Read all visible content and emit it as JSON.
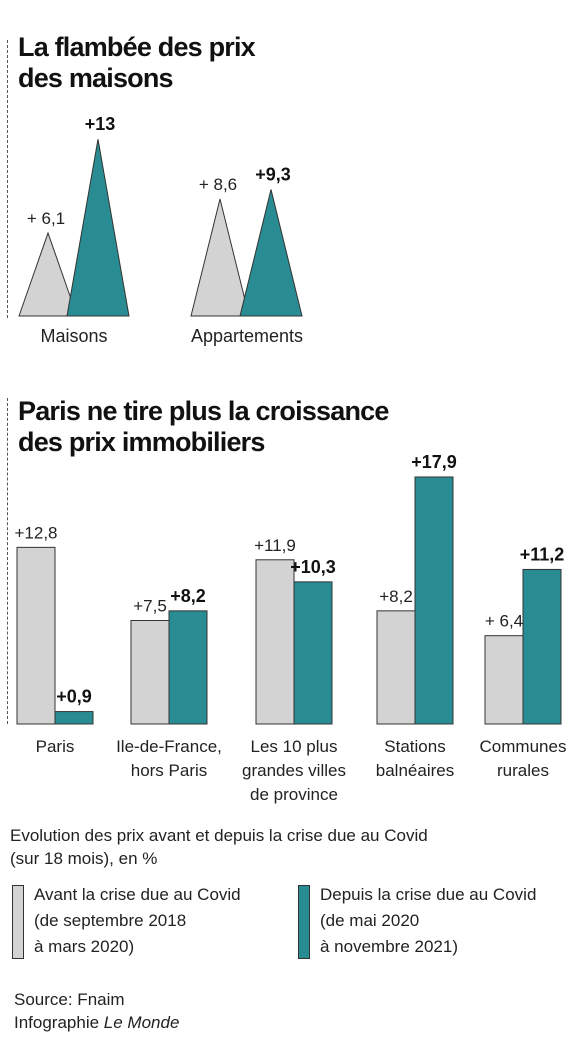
{
  "colors": {
    "before": "#d3d3d3",
    "after": "#2a8c93",
    "outline": "#333333"
  },
  "chart1_title": {
    "line1": "La flambée des prix",
    "line2": "des maisons"
  },
  "chart2_title": {
    "line1": "Paris ne tire plus la croissance",
    "line2": "des prix immobiliers"
  },
  "chart_data": [
    {
      "type": "bar",
      "style": "triangles",
      "categories": [
        "Maisons",
        "Appartements"
      ],
      "series": [
        {
          "values": [
            6.1,
            8.6
          ],
          "labels": [
            "+ 6,1",
            "+ 8,6"
          ]
        },
        {
          "values": [
            13,
            9.3
          ],
          "labels": [
            "+13",
            "+9,3"
          ]
        }
      ]
    },
    {
      "type": "bar",
      "categories": [
        [
          "Paris"
        ],
        [
          "Ile-de-France,",
          "hors Paris"
        ],
        [
          "Les 10 plus",
          "grandes villes",
          "de province"
        ],
        [
          "Stations",
          "balnéaires"
        ],
        [
          "Communes",
          "rurales"
        ]
      ],
      "series": [
        {
          "values": [
            12.8,
            7.5,
            11.9,
            8.2,
            6.4
          ],
          "labels": [
            "+12,8",
            "+7,5",
            "+11,9",
            "+8,2",
            "+ 6,4"
          ]
        },
        {
          "values": [
            0.9,
            8.2,
            10.3,
            17.9,
            11.2
          ],
          "labels": [
            "+0,9",
            "+8,2",
            "+10,3",
            "+17,9",
            "+11,2"
          ]
        }
      ]
    }
  ],
  "caption": {
    "line1": "Evolution des prix avant et depuis la crise due au Covid",
    "line2": "(sur 18 mois), en %"
  },
  "legend": {
    "before": [
      "Avant la crise due au Covid",
      "(de septembre 2018",
      "à mars 2020)"
    ],
    "after": [
      "Depuis la crise due au Covid",
      "(de mai 2020",
      "à novembre 2021)"
    ]
  },
  "source": {
    "line1": "Source:  Fnaim",
    "credit_prefix": "Infographie ",
    "credit_name": "Le Monde"
  }
}
